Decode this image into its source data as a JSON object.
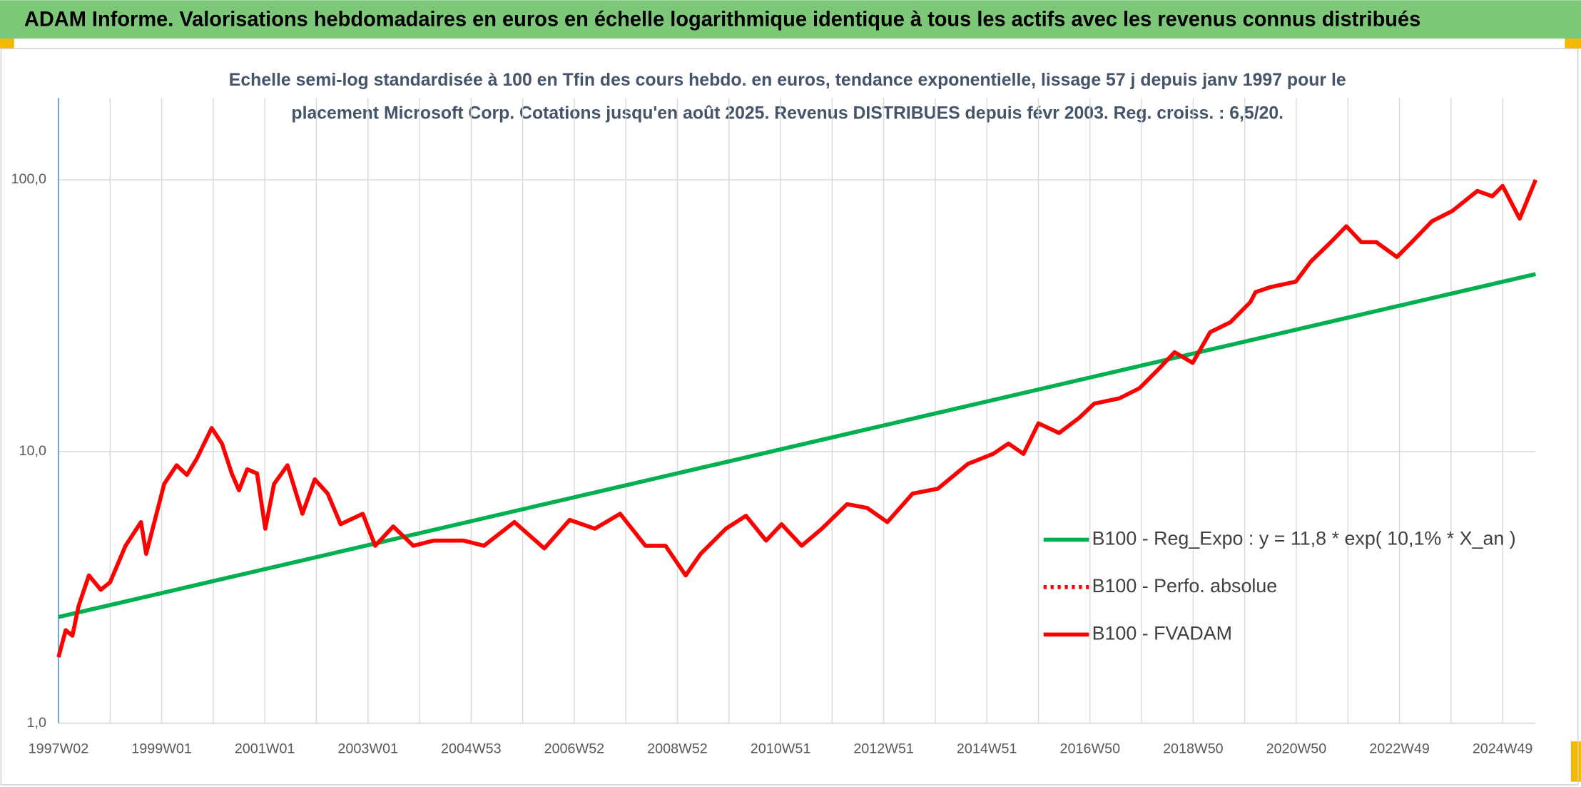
{
  "chart_data": {
    "type": "line",
    "title": "ADAM Informe. Valorisations hebdomadaires en euros en échelle logarithmique identique à tous les actifs avec les revenus connus distribués",
    "subtitle": [
      "Echelle semi-log standardisée à 100 en Tfin des cours hebdo. en euros, tendance exponentielle, lissage 57 j depuis janv 1997 pour le",
      "placement Microsoft Corp. Cotations jusqu'en août 2025. Revenus DISTRIBUES depuis févr 2003. Reg. croiss. : 6,5/20."
    ],
    "log_y": true,
    "grid": true,
    "legend": "right",
    "xlim": [
      1997,
      2025.64
    ],
    "xticks": [
      {
        "value": 1997,
        "label": "1997W02"
      },
      {
        "value": 1999,
        "label": "1999W01"
      },
      {
        "value": 2001,
        "label": "2001W01"
      },
      {
        "value": 2003,
        "label": "2003W01"
      },
      {
        "value": 2005,
        "label": "2004W53"
      },
      {
        "value": 2007,
        "label": "2006W52"
      },
      {
        "value": 2009,
        "label": "2008W52"
      },
      {
        "value": 2011,
        "label": "2010W51"
      },
      {
        "value": 2013,
        "label": "2012W51"
      },
      {
        "value": 2015,
        "label": "2014W51"
      },
      {
        "value": 2017,
        "label": "2016W50"
      },
      {
        "value": 2019,
        "label": "2018W50"
      },
      {
        "value": 2021,
        "label": "2020W50"
      },
      {
        "value": 2023,
        "label": "2022W49"
      },
      {
        "value": 2025,
        "label": "2024W49"
      }
    ],
    "ylim": [
      1,
      200
    ],
    "yticks": [
      {
        "value": 1,
        "label": "1,0"
      },
      {
        "value": 10,
        "label": "10,0"
      },
      {
        "value": 100,
        "label": "100,0"
      }
    ],
    "series": [
      {
        "name": "B100 - Reg_Expo : y = 11,8 * exp( 10,1% *  X_an )",
        "color": "#00b050",
        "style": "solid",
        "x": [
          1997,
          2025.64
        ],
        "values": [
          2.46,
          45
        ]
      },
      {
        "name": "B100 - Perfo. absolue",
        "color": "#ff0000",
        "style": "dotted",
        "x": [],
        "values": []
      },
      {
        "name": "B100 - FVADAM",
        "color": "#ff0000",
        "style": "solid",
        "x": [
          1997.0,
          1997.14,
          1997.27,
          1997.39,
          1997.59,
          1997.82,
          1998.0,
          1998.3,
          1998.6,
          1998.7,
          1999.05,
          1999.29,
          1999.49,
          1999.68,
          1999.97,
          2000.17,
          2000.36,
          2000.5,
          2000.66,
          2000.85,
          2001.01,
          2001.18,
          2001.44,
          2001.73,
          2001.97,
          2002.22,
          2002.47,
          2002.9,
          2003.14,
          2003.49,
          2003.88,
          2004.27,
          2004.86,
          2005.25,
          2005.84,
          2006.42,
          2006.91,
          2007.4,
          2007.89,
          2008.38,
          2008.77,
          2009.16,
          2009.45,
          2009.94,
          2010.33,
          2010.72,
          2011.02,
          2011.41,
          2011.8,
          2012.29,
          2012.68,
          2013.07,
          2013.56,
          2014.05,
          2014.63,
          2015.12,
          2015.42,
          2015.71,
          2016.0,
          2016.4,
          2016.79,
          2017.08,
          2017.57,
          2017.96,
          2018.35,
          2018.64,
          2018.99,
          2019.33,
          2019.72,
          2020.11,
          2020.21,
          2020.5,
          2020.99,
          2021.28,
          2021.67,
          2021.97,
          2022.26,
          2022.55,
          2022.95,
          2023.24,
          2023.63,
          2024.02,
          2024.51,
          2024.8,
          2025.0,
          2025.33,
          2025.64
        ],
        "values": [
          1.75,
          2.2,
          2.1,
          2.7,
          3.5,
          3.1,
          3.3,
          4.5,
          5.5,
          4.2,
          7.6,
          8.9,
          8.2,
          9.4,
          12.2,
          10.7,
          8.3,
          7.2,
          8.6,
          8.3,
          5.2,
          7.6,
          8.9,
          5.9,
          7.9,
          7.0,
          5.4,
          5.9,
          4.5,
          5.3,
          4.5,
          4.7,
          4.7,
          4.5,
          5.5,
          4.4,
          5.6,
          5.2,
          5.9,
          4.5,
          4.5,
          3.5,
          4.2,
          5.2,
          5.8,
          4.7,
          5.4,
          4.5,
          5.2,
          6.4,
          6.2,
          5.5,
          7.0,
          7.3,
          9.0,
          9.8,
          10.7,
          9.8,
          12.7,
          11.7,
          13.3,
          15.0,
          15.7,
          17.1,
          20.3,
          23.2,
          21.2,
          27.5,
          29.9,
          35.5,
          38.6,
          40.3,
          42.2,
          50,
          59,
          67.5,
          59,
          59,
          52,
          59,
          70.4,
          76.7,
          91,
          87,
          95,
          72,
          100
        ]
      }
    ]
  }
}
